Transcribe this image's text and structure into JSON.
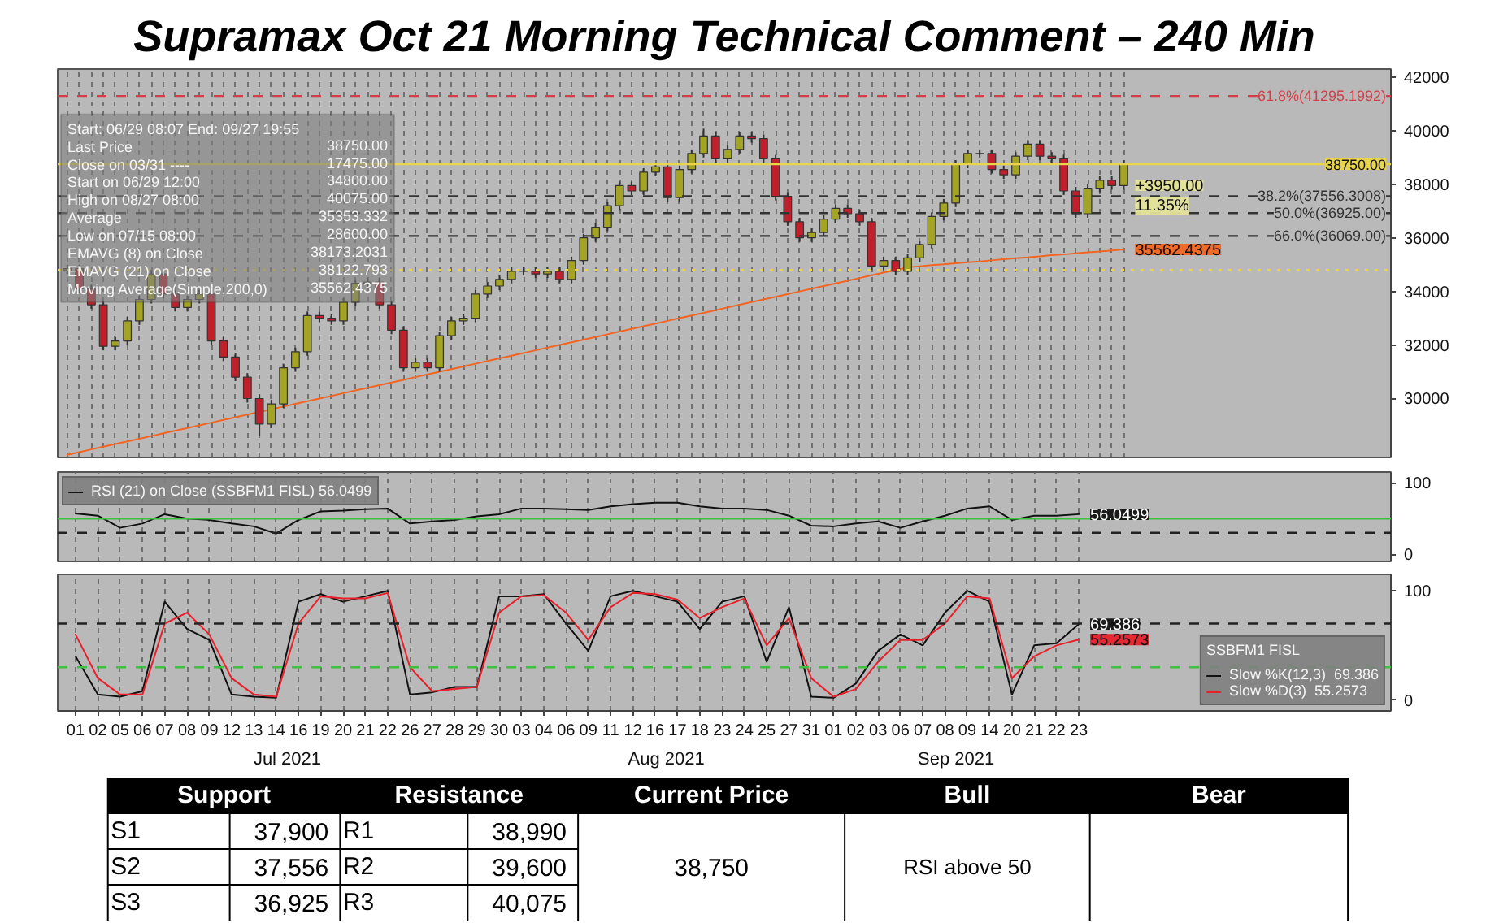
{
  "chart_data": [
    {
      "type": "candlestick",
      "title": "Supramax Oct 21 Morning Technical Comment – 240 Min",
      "categories": [
        null,
        null,
        null,
        null,
        null,
        null,
        null,
        null,
        null,
        null,
        null,
        null,
        null,
        null,
        null,
        null,
        null,
        null,
        null,
        null,
        null,
        null,
        null,
        null,
        null,
        null,
        null,
        null,
        null,
        null,
        null,
        null,
        null,
        null,
        null,
        null,
        null,
        null,
        null,
        null,
        null,
        null,
        null,
        null,
        null,
        null,
        null,
        null,
        null,
        null,
        null,
        null,
        null,
        null,
        null,
        null,
        null,
        null,
        null,
        null,
        null,
        null,
        null,
        null,
        null,
        null,
        null,
        null,
        null,
        null,
        null,
        null,
        null,
        null,
        null,
        null,
        null,
        null,
        null,
        null,
        null,
        null,
        null,
        null,
        null,
        null,
        null,
        null,
        null
      ],
      "ohlc": [
        [
          34800,
          35000,
          34650,
          34850
        ],
        [
          34850,
          35000,
          33950,
          34100
        ],
        [
          34100,
          34250,
          33350,
          33500
        ],
        [
          33500,
          33650,
          31800,
          31950
        ],
        [
          31950,
          32300,
          31800,
          32150
        ],
        [
          32150,
          33050,
          32000,
          32900
        ],
        [
          32900,
          33850,
          32750,
          33700
        ],
        [
          33700,
          34800,
          33550,
          34650
        ],
        [
          34650,
          34800,
          33750,
          33900
        ],
        [
          33900,
          34050,
          33250,
          33400
        ],
        [
          33400,
          33850,
          33250,
          33700
        ],
        [
          33700,
          34050,
          33550,
          33900
        ],
        [
          33900,
          34050,
          32000,
          32150
        ],
        [
          32150,
          32300,
          31400,
          31550
        ],
        [
          31550,
          31700,
          30650,
          30800
        ],
        [
          30800,
          30950,
          29850,
          30000
        ],
        [
          30000,
          30150,
          28600,
          29050
        ],
        [
          29050,
          29950,
          28900,
          29800
        ],
        [
          29800,
          31300,
          29650,
          31150
        ],
        [
          31150,
          31900,
          31000,
          31750
        ],
        [
          31750,
          33250,
          31600,
          33100
        ],
        [
          33100,
          33250,
          32850,
          33000
        ],
        [
          33000,
          33150,
          32750,
          32900
        ],
        [
          32900,
          33750,
          32750,
          33600
        ],
        [
          33600,
          34450,
          33450,
          34300
        ],
        [
          34300,
          34500,
          34150,
          34350
        ],
        [
          34350,
          34500,
          33350,
          33500
        ],
        [
          33500,
          33650,
          32400,
          32550
        ],
        [
          32550,
          32700,
          31000,
          31150
        ],
        [
          31150,
          31500,
          31000,
          31350
        ],
        [
          31350,
          31500,
          31000,
          31150
        ],
        [
          31150,
          32500,
          31000,
          32350
        ],
        [
          32350,
          33050,
          32200,
          32900
        ],
        [
          32900,
          33150,
          32750,
          33000
        ],
        [
          33000,
          34050,
          32850,
          33900
        ],
        [
          33900,
          34350,
          33750,
          34200
        ],
        [
          34200,
          34600,
          34050,
          34450
        ],
        [
          34450,
          34900,
          34300,
          34750
        ],
        [
          34750,
          34900,
          34600,
          34750
        ],
        [
          34750,
          34900,
          34500,
          34650
        ],
        [
          34650,
          34900,
          34500,
          34750
        ],
        [
          34750,
          34900,
          34300,
          34450
        ],
        [
          34450,
          35300,
          34300,
          35150
        ],
        [
          35150,
          36150,
          35000,
          36000
        ],
        [
          36000,
          36550,
          35850,
          36400
        ],
        [
          36400,
          37350,
          36250,
          37200
        ],
        [
          37200,
          38100,
          37050,
          37950
        ],
        [
          37950,
          38100,
          37600,
          37750
        ],
        [
          37750,
          38600,
          37600,
          38450
        ],
        [
          38450,
          38800,
          38300,
          38650
        ],
        [
          38650,
          38800,
          37350,
          37500
        ],
        [
          37500,
          38700,
          37350,
          38550
        ],
        [
          38550,
          39300,
          38400,
          39150
        ],
        [
          39150,
          40075,
          39000,
          39800
        ],
        [
          39800,
          39950,
          38800,
          38950
        ],
        [
          38950,
          39450,
          38800,
          39300
        ],
        [
          39300,
          39950,
          39150,
          39800
        ],
        [
          39800,
          39950,
          39550,
          39700
        ],
        [
          39700,
          39850,
          38800,
          38950
        ],
        [
          38950,
          39100,
          37400,
          37550
        ],
        [
          37550,
          37700,
          36450,
          36600
        ],
        [
          36600,
          36750,
          35850,
          36000
        ],
        [
          36000,
          36350,
          35850,
          36200
        ],
        [
          36200,
          36850,
          36050,
          36700
        ],
        [
          36700,
          37250,
          36550,
          37100
        ],
        [
          37100,
          37250,
          36750,
          36900
        ],
        [
          36900,
          37050,
          36450,
          36600
        ],
        [
          36600,
          36750,
          34800,
          34950
        ],
        [
          34950,
          35300,
          34800,
          35150
        ],
        [
          35150,
          35300,
          34600,
          34750
        ],
        [
          34750,
          35400,
          34600,
          35250
        ],
        [
          35250,
          35900,
          35100,
          35750
        ],
        [
          35750,
          36950,
          35600,
          36800
        ],
        [
          36800,
          37450,
          36650,
          37300
        ],
        [
          37300,
          38900,
          37150,
          38750
        ],
        [
          38750,
          39300,
          38600,
          39150
        ],
        [
          39150,
          39300,
          39000,
          39150
        ],
        [
          39150,
          39300,
          38400,
          38550
        ],
        [
          38550,
          38700,
          38200,
          38350
        ],
        [
          38350,
          39200,
          38200,
          39050
        ],
        [
          39050,
          39650,
          38900,
          39500
        ],
        [
          39500,
          39650,
          38900,
          39050
        ],
        [
          39050,
          39200,
          38800,
          38950
        ],
        [
          38950,
          39100,
          37600,
          37750
        ],
        [
          37750,
          37900,
          36750,
          36900
        ],
        [
          36900,
          38000,
          36750,
          37850
        ],
        [
          37850,
          38300,
          37700,
          38150
        ],
        [
          38150,
          38300,
          37800,
          37950
        ],
        [
          37950,
          38900,
          37800,
          38750
        ]
      ],
      "series": [
        {
          "type": "line",
          "color": "#f26522",
          "values": [
            27900,
            28000,
            28100,
            28200,
            28300,
            28400,
            28500,
            28600,
            28700,
            28800,
            28900,
            29000,
            29100,
            29200,
            29300,
            29400,
            29500,
            29600,
            29700,
            29800,
            29900,
            30000,
            30100,
            30200,
            30300,
            30400,
            30500,
            30600,
            30700,
            30800,
            30900,
            31000,
            31100,
            31200,
            31300,
            31400,
            31500,
            31600,
            31700,
            31800,
            31900,
            32000,
            32100,
            32200,
            32300,
            32400,
            32500,
            32600,
            32700,
            32800,
            32900,
            33000,
            33100,
            33200,
            33300,
            33400,
            33500,
            33600,
            33700,
            33800,
            33900,
            34000,
            34100,
            34200,
            34300,
            34400,
            34500,
            34600,
            34700,
            34800,
            34900,
            34940,
            34980,
            35010,
            35050,
            35090,
            35120,
            35160,
            35200,
            35240,
            35270,
            35310,
            35350,
            35380,
            35420,
            35460,
            35490,
            35530,
            35562.4375
          ],
          "value_labels": [
            null,
            null,
            null,
            null,
            null,
            null,
            null,
            null,
            null,
            null,
            null,
            null,
            null,
            null,
            null,
            null,
            null,
            null,
            null,
            null,
            null,
            null,
            null,
            null,
            null,
            null,
            null,
            null,
            null,
            null,
            null,
            null,
            null,
            null,
            null,
            null,
            null,
            null,
            null,
            null,
            null,
            null,
            null,
            null,
            null,
            null,
            null,
            null,
            null,
            null,
            null,
            null,
            null,
            null,
            null,
            null,
            null,
            null,
            null,
            null,
            null,
            null,
            null,
            null,
            null,
            null,
            null,
            null,
            null,
            null,
            null,
            null,
            null,
            null,
            null,
            null,
            null,
            null,
            null,
            null,
            null,
            null,
            null,
            null,
            null,
            null,
            null,
            null,
            "35562.4375"
          ]
        }
      ],
      "ylim": [
        27800,
        42300
      ],
      "yticks": [
        30000,
        32000,
        34000,
        36000,
        38000,
        40000,
        42000
      ],
      "tick_labels": "y",
      "grid": "x",
      "ref_lines": [
        {
          "axis": "y",
          "value": 41295.1992,
          "label": "61.8%(41295.1992)",
          "color": "#d0404a",
          "line_style": "dashed"
        },
        {
          "axis": "y",
          "value": 38750,
          "label": "38750.00",
          "color": "#e8d44d",
          "line_style": "solid"
        },
        {
          "axis": "y",
          "value": 37556.3008,
          "label": "38.2%(37556.3008)",
          "color": "#333333",
          "line_style": "dashed"
        },
        {
          "axis": "y",
          "value": 36925,
          "label": "50.0%(36925.00)",
          "color": "#333333",
          "line_style": "dashed"
        },
        {
          "axis": "y",
          "value": 36069,
          "label": "66.0%(36069.00)",
          "color": "#333333",
          "line_style": "dashed"
        },
        {
          "axis": "y",
          "value": 34800,
          "color": "#e8d44d",
          "line_style": "dotted"
        }
      ],
      "annotations": [
        "Start: 06/29 08:07 End: 09/27 19:55",
        "Last Price",
        "38750.00",
        "Close on 03/31 ----",
        "17475.00",
        "Start on 06/29 12:00",
        "34800.00",
        "High on 08/27 08:00",
        "40075.00",
        "Average",
        "35353.332",
        "Low on 07/15 08:00",
        "28600.00",
        "EMAVG (8)  on Close",
        "38173.2031",
        "EMAVG (21)  on Close",
        "38122.793",
        "Moving Average(Simple,200,0)",
        "35562.4375",
        {
          "text": "+3950.00",
          "y": 38750
        },
        {
          "text": "11.35%",
          "y": 38750
        }
      ]
    },
    {
      "type": "line",
      "categories": [
        null,
        null,
        null,
        null,
        null,
        null,
        null,
        null,
        null,
        null,
        null,
        null,
        null,
        null,
        null,
        null,
        null,
        null,
        null,
        null,
        null,
        null,
        null,
        null,
        null,
        null,
        null,
        null,
        null,
        null,
        null,
        null,
        null,
        null,
        null,
        null,
        null,
        null,
        null,
        null,
        null,
        null,
        null,
        null,
        null,
        null
      ],
      "series": [
        {
          "name": "RSI (21) on Close (SSBFM1 FISL) 56.0499",
          "color": "#111111",
          "values": [
            57,
            54,
            37,
            43,
            56,
            50,
            48,
            43,
            39,
            29,
            48,
            60,
            61,
            63,
            64,
            43,
            46,
            48,
            53,
            56,
            64,
            64,
            63,
            62,
            67,
            70,
            72,
            72,
            67,
            64,
            64,
            62,
            54,
            40,
            39,
            43,
            46,
            37,
            46,
            54,
            64,
            67,
            48,
            54,
            54,
            56.0499
          ],
          "value_labels": [
            null,
            null,
            null,
            null,
            null,
            null,
            null,
            null,
            null,
            null,
            null,
            null,
            null,
            null,
            null,
            null,
            null,
            null,
            null,
            null,
            null,
            null,
            null,
            null,
            null,
            null,
            null,
            null,
            null,
            null,
            null,
            null,
            null,
            null,
            null,
            null,
            null,
            null,
            null,
            null,
            null,
            null,
            null,
            null,
            null,
            "56.0499"
          ]
        }
      ],
      "ylim": [
        -10,
        115
      ],
      "yticks": [
        0,
        100
      ],
      "tick_labels": "y",
      "grid": "x",
      "ref_lines": [
        {
          "axis": "y",
          "value": 50,
          "color": "#3fbf3f",
          "line_style": "solid"
        },
        {
          "axis": "y",
          "value": 30,
          "color": "#222222",
          "line_style": "dashed"
        }
      ],
      "legend": "top left"
    },
    {
      "type": "line",
      "categories": [
        "01",
        "02",
        "05",
        "06",
        "07",
        "08",
        "09",
        "12",
        "13",
        "14",
        "16",
        "19",
        "20",
        "21",
        "22",
        "26",
        "27",
        "28",
        "29",
        "30",
        "03",
        "04",
        "06",
        "09",
        "11",
        "12",
        "16",
        "17",
        "18",
        "23",
        "24",
        "25",
        "27",
        "31",
        "01",
        "02",
        "03",
        "06",
        "07",
        "08",
        "09",
        "14",
        "20",
        "21",
        "22",
        "23"
      ],
      "legend_title": "SSBFM1 FISL",
      "series": [
        {
          "name": "Slow %K(12,3)  69.386",
          "color": "#111111",
          "values": [
            40,
            5,
            3,
            8,
            90,
            65,
            55,
            5,
            3,
            2,
            90,
            97,
            90,
            95,
            100,
            5,
            7,
            12,
            12,
            95,
            95,
            97,
            70,
            45,
            95,
            100,
            95,
            90,
            65,
            90,
            95,
            35,
            85,
            3,
            2,
            15,
            45,
            60,
            50,
            80,
            100,
            90,
            5,
            50,
            52,
            69.386
          ],
          "value_labels": [
            null,
            null,
            null,
            null,
            null,
            null,
            null,
            null,
            null,
            null,
            null,
            null,
            null,
            null,
            null,
            null,
            null,
            null,
            null,
            null,
            null,
            null,
            null,
            null,
            null,
            null,
            null,
            null,
            null,
            null,
            null,
            null,
            null,
            null,
            null,
            null,
            null,
            null,
            null,
            null,
            null,
            null,
            null,
            null,
            null,
            "69.386"
          ]
        },
        {
          "name": "Slow %D(3)  55.2573",
          "color": "#e8202a",
          "values": [
            60,
            20,
            5,
            5,
            70,
            80,
            60,
            20,
            5,
            3,
            70,
            95,
            93,
            93,
            98,
            30,
            8,
            10,
            12,
            80,
            95,
            96,
            80,
            55,
            85,
            98,
            97,
            92,
            75,
            85,
            93,
            50,
            75,
            20,
            3,
            10,
            35,
            55,
            55,
            70,
            95,
            93,
            20,
            40,
            50,
            55.2573
          ],
          "value_labels": [
            null,
            null,
            null,
            null,
            null,
            null,
            null,
            null,
            null,
            null,
            null,
            null,
            null,
            null,
            null,
            null,
            null,
            null,
            null,
            null,
            null,
            null,
            null,
            null,
            null,
            null,
            null,
            null,
            null,
            null,
            null,
            null,
            null,
            null,
            null,
            null,
            null,
            null,
            null,
            null,
            null,
            null,
            null,
            null,
            null,
            "55.2573"
          ]
        }
      ],
      "ylim": [
        -10,
        115
      ],
      "yticks": [
        0,
        100
      ],
      "grid": "x",
      "legend": "bottom right",
      "ref_lines": [
        {
          "axis": "y",
          "value": 70,
          "color": "#222222",
          "line_style": "dashed"
        },
        {
          "axis": "y",
          "value": 30,
          "color": "#3fbf3f",
          "line_style": "dashed"
        }
      ],
      "annotations": [
        "Jul 2021",
        "Aug 2021",
        "Sep 2021"
      ]
    },
    {
      "type": "other",
      "annotations": [
        "Support",
        "Resistance",
        "Current Price",
        "Bull",
        "Bear",
        "S1",
        "37,900",
        "R1",
        "38,990",
        "S2",
        "37,556",
        "R2",
        "39,600",
        "S3",
        "36,925",
        "R3",
        "40,075",
        "38,750",
        "RSI above 50"
      ]
    }
  ]
}
